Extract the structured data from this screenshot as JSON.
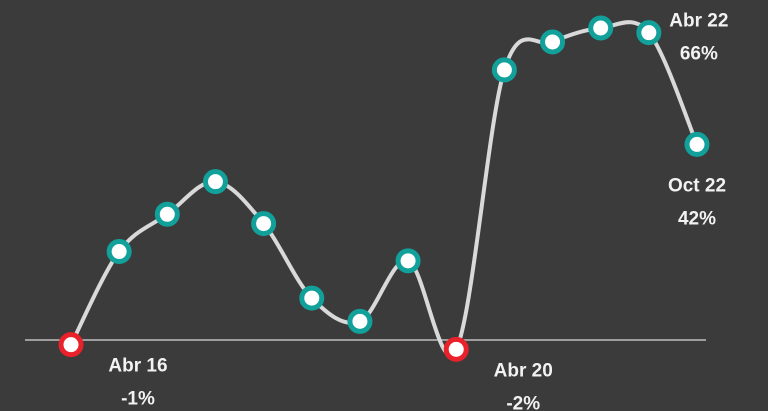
{
  "chart_data": {
    "type": "line",
    "categories": [
      "Abr 16",
      null,
      null,
      null,
      null,
      null,
      null,
      null,
      "Abr 20",
      null,
      null,
      null,
      "Abr 22",
      "Oct 22"
    ],
    "values": [
      -1,
      19,
      27,
      34,
      25,
      9,
      4,
      17,
      -2,
      58,
      64,
      67,
      66,
      42
    ],
    "value_labels": [
      "-1%",
      null,
      null,
      null,
      null,
      null,
      null,
      null,
      "-2%",
      null,
      null,
      null,
      "66%",
      "42%"
    ],
    "color": "#d9d9d9",
    "marker_color": "#12a19a",
    "negative_color": "#e8212b"
  }
}
